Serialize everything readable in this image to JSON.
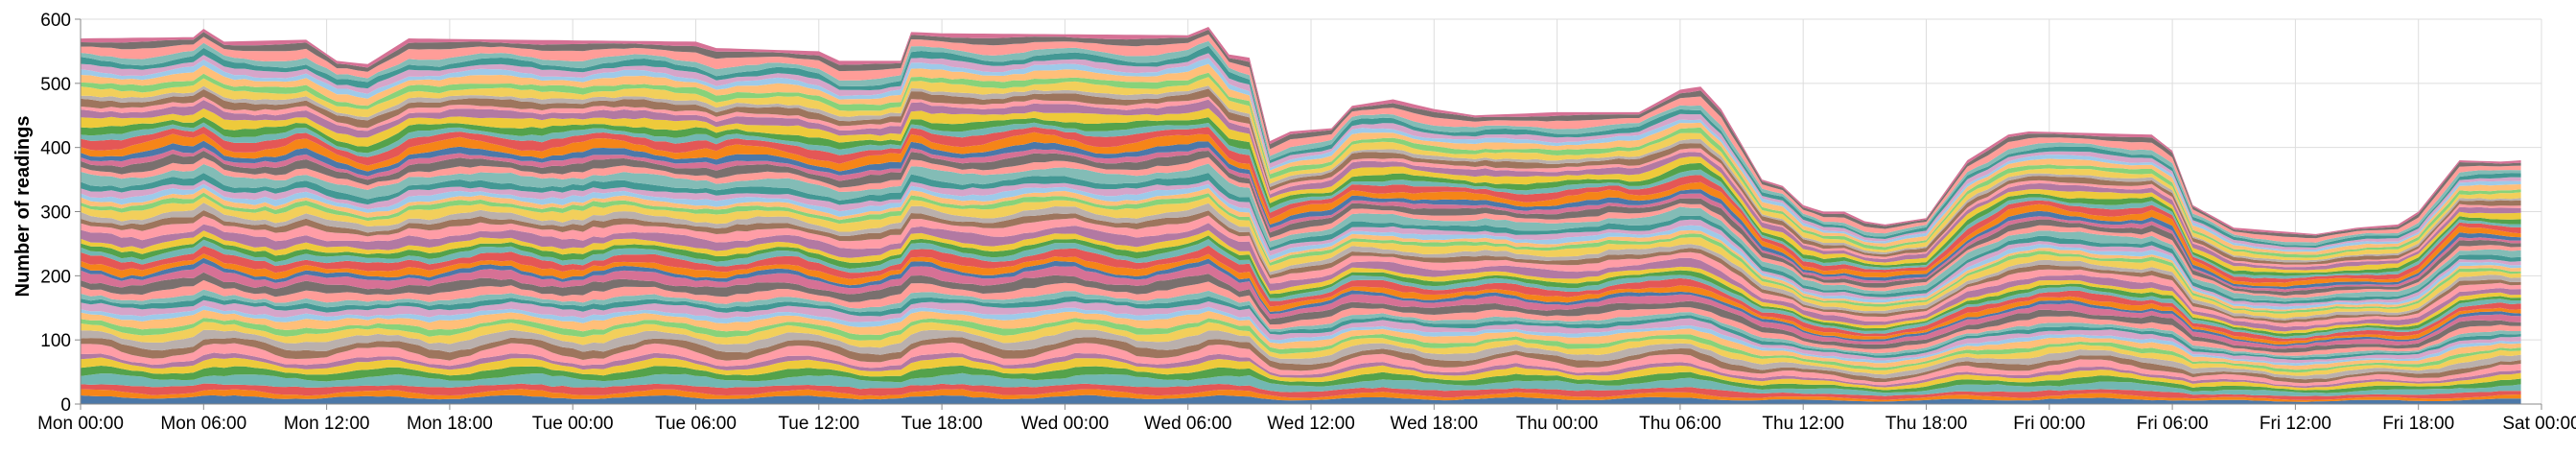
{
  "chart_data": {
    "type": "area",
    "stacked": true,
    "xlabel": "",
    "ylabel": "Number of readings",
    "ylim": [
      0,
      600
    ],
    "yticks": [
      0,
      100,
      200,
      300,
      400,
      500,
      600
    ],
    "grid": true,
    "legend": "none",
    "x_ticks": [
      "Mon 00:00",
      "Mon 06:00",
      "Mon 12:00",
      "Mon 18:00",
      "Tue 00:00",
      "Tue 06:00",
      "Tue 12:00",
      "Tue 18:00",
      "Wed 00:00",
      "Wed 06:00",
      "Wed 12:00",
      "Wed 18:00",
      "Thu 00:00",
      "Thu 06:00",
      "Thu 12:00",
      "Thu 18:00",
      "Fri 00:00",
      "Fri 06:00",
      "Fri 12:00",
      "Fri 18:00",
      "Sat 00:00"
    ],
    "x_range_hours": [
      0,
      120
    ],
    "total_readings_profile": [
      [
        0,
        570
      ],
      [
        5.5,
        572
      ],
      [
        6,
        585
      ],
      [
        7,
        565
      ],
      [
        11,
        568
      ],
      [
        12.5,
        535
      ],
      [
        14,
        530
      ],
      [
        16,
        570
      ],
      [
        21,
        568
      ],
      [
        30,
        565
      ],
      [
        31,
        555
      ],
      [
        36,
        550
      ],
      [
        37,
        535
      ],
      [
        40,
        535
      ],
      [
        40.5,
        580
      ],
      [
        42,
        578
      ],
      [
        54,
        575
      ],
      [
        55,
        588
      ],
      [
        56,
        545
      ],
      [
        57,
        540
      ],
      [
        58,
        410
      ],
      [
        59,
        425
      ],
      [
        61,
        430
      ],
      [
        62,
        465
      ],
      [
        64,
        475
      ],
      [
        66,
        460
      ],
      [
        68,
        450
      ],
      [
        72,
        455
      ],
      [
        76,
        455
      ],
      [
        78,
        490
      ],
      [
        79,
        495
      ],
      [
        80,
        460
      ],
      [
        82,
        350
      ],
      [
        83,
        340
      ],
      [
        84,
        310
      ],
      [
        85,
        300
      ],
      [
        86,
        300
      ],
      [
        87,
        285
      ],
      [
        88,
        280
      ],
      [
        89,
        285
      ],
      [
        90,
        290
      ],
      [
        92,
        380
      ],
      [
        94,
        420
      ],
      [
        95,
        425
      ],
      [
        101,
        420
      ],
      [
        102,
        395
      ],
      [
        103,
        310
      ],
      [
        105,
        275
      ],
      [
        109,
        265
      ],
      [
        110,
        270
      ],
      [
        111,
        275
      ],
      [
        113,
        280
      ],
      [
        114,
        300
      ],
      [
        115,
        340
      ],
      [
        116,
        380
      ],
      [
        118,
        378
      ],
      [
        119,
        380
      ]
    ],
    "series_count": 60,
    "series_colors": [
      "#4c78a8",
      "#f58518",
      "#e45756",
      "#72b7b2",
      "#54a24b",
      "#eeca3b",
      "#b279a2",
      "#ff9da6",
      "#9d755d",
      "#bab0ac",
      "#f2cf5b",
      "#88d27a",
      "#ffbf79",
      "#9ecae9",
      "#d6a5c9",
      "#439894",
      "#83bcb6",
      "#ff9d98",
      "#79706e",
      "#d67195"
    ]
  }
}
